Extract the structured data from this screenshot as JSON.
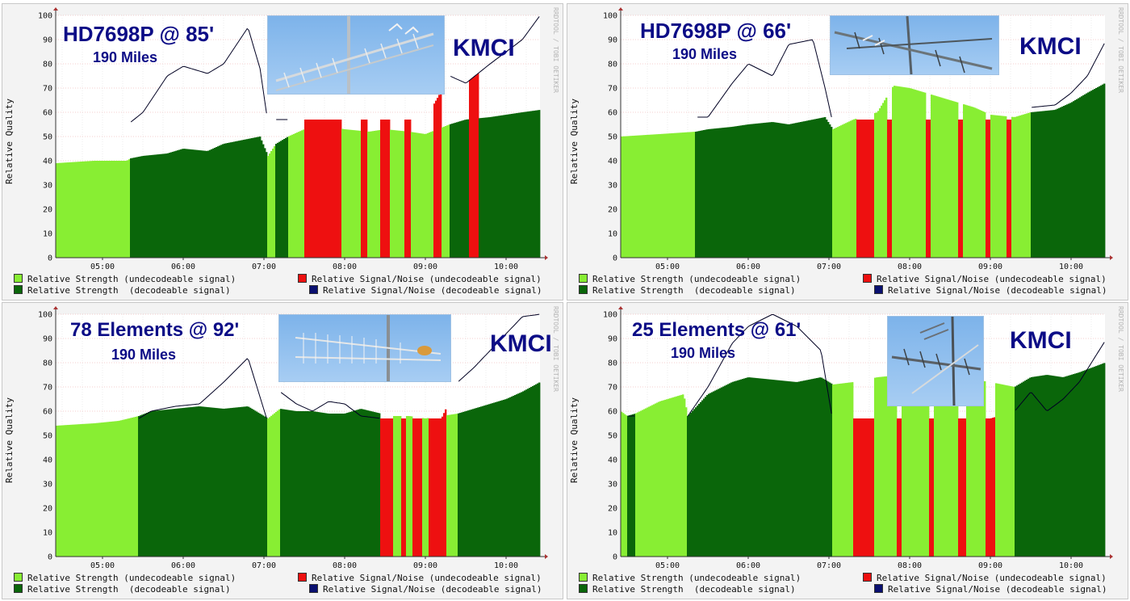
{
  "legend": {
    "strength_undecodeable": "Relative Strength (undecodeable signal)",
    "strength_decodeable": "Relative Strength  (decodeable signal)",
    "sn_undecodeable": "Relative Signal/Noise (undecodeable signal)",
    "sn_decodeable": "Relative Signal/Noise (decodeable signal)"
  },
  "colors": {
    "strength_undecodeable": "#88ee33",
    "strength_decodeable": "#0a660a",
    "sn_undecodeable": "#ee1010",
    "sn_decodeable": "#0a1070",
    "sn_line": "#000022",
    "gap_fill": "#ffee33"
  },
  "ylabel": "Relative Quality",
  "watermark": "RRDTOOL / TOBI OETIKER",
  "chart_data": [
    {
      "type": "area",
      "title": "HD7698P @ 85'",
      "subtitle": "190 Miles",
      "station": "KMCI",
      "ylabel": "Relative Quality",
      "ylim": [
        0,
        100
      ],
      "yticks": [
        0,
        10,
        20,
        30,
        40,
        50,
        60,
        70,
        80,
        90,
        100
      ],
      "xticks": [
        "05:00",
        "06:00",
        "07:00",
        "08:00",
        "09:00",
        "10:00"
      ],
      "xlim_hours": [
        4.42,
        10.42
      ],
      "x_hours": [
        4.42,
        4.9,
        5.3,
        5.35,
        5.5,
        5.8,
        6.0,
        6.3,
        6.5,
        6.8,
        6.95,
        7.05,
        7.15,
        7.3,
        7.5,
        7.8,
        8.0,
        8.3,
        8.5,
        8.8,
        9.0,
        9.3,
        9.5,
        9.8,
        10.0,
        10.2,
        10.42
      ],
      "strength": [
        39,
        40,
        40,
        41,
        42,
        43,
        45,
        44,
        47,
        49,
        50,
        42,
        47,
        50,
        53,
        54,
        53,
        52,
        53,
        52,
        51,
        55,
        57,
        58,
        59,
        60,
        61
      ],
      "signal_noise": [
        null,
        null,
        null,
        56,
        60,
        75,
        79,
        76,
        80,
        95,
        78,
        55,
        57,
        57,
        57,
        57,
        57,
        57,
        57,
        57,
        57,
        75,
        72,
        80,
        85,
        90,
        100
      ],
      "decodeable": [
        false,
        false,
        false,
        true,
        true,
        true,
        true,
        true,
        true,
        true,
        true,
        false,
        true,
        false,
        false,
        false,
        false,
        false,
        false,
        false,
        false,
        true,
        true,
        true,
        true,
        true,
        true
      ],
      "undecodeable_sn_bursts_hours": [
        [
          7.5,
          7.95
        ],
        [
          8.2,
          8.28
        ],
        [
          8.45,
          8.55
        ],
        [
          8.75,
          8.82
        ],
        [
          9.1,
          9.2
        ],
        [
          9.55,
          9.65
        ]
      ]
    },
    {
      "type": "area",
      "title": "HD7698P @ 66'",
      "subtitle": "190 Miles",
      "station": "KMCI",
      "ylabel": "Relative Quality",
      "ylim": [
        0,
        100
      ],
      "yticks": [
        0,
        10,
        20,
        30,
        40,
        50,
        60,
        70,
        80,
        90,
        100
      ],
      "xticks": [
        "05:00",
        "06:00",
        "07:00",
        "08:00",
        "09:00",
        "10:00"
      ],
      "xlim_hours": [
        4.42,
        10.42
      ],
      "x_hours": [
        4.42,
        4.9,
        5.35,
        5.5,
        5.8,
        6.0,
        6.3,
        6.5,
        6.8,
        6.95,
        7.05,
        7.3,
        7.6,
        7.8,
        8.0,
        8.3,
        8.5,
        8.8,
        9.0,
        9.3,
        9.5,
        9.8,
        10.0,
        10.2,
        10.42
      ],
      "strength": [
        50,
        51,
        52,
        53,
        54,
        55,
        56,
        55,
        57,
        58,
        53,
        57,
        60,
        71,
        70,
        67,
        65,
        62,
        59,
        58,
        60,
        61,
        64,
        68,
        72
      ],
      "signal_noise": [
        null,
        null,
        null,
        58,
        72,
        80,
        75,
        88,
        90,
        70,
        55,
        57,
        57,
        57,
        57,
        57,
        57,
        57,
        57,
        57,
        62,
        63,
        68,
        75,
        89
      ],
      "decodeable": [
        false,
        false,
        true,
        true,
        true,
        true,
        true,
        true,
        true,
        true,
        false,
        false,
        false,
        false,
        false,
        false,
        false,
        false,
        false,
        false,
        true,
        true,
        true,
        true,
        true
      ],
      "undecodeable_sn_bursts_hours": [
        [
          7.35,
          7.55
        ],
        [
          7.72,
          7.78
        ],
        [
          8.2,
          8.25
        ],
        [
          8.6,
          8.65
        ],
        [
          8.95,
          9.0
        ],
        [
          9.2,
          9.25
        ]
      ]
    },
    {
      "type": "area",
      "title": "78 Elements @ 92'",
      "subtitle": "190 Miles",
      "station": "KMCI",
      "ylabel": "Relative Quality",
      "ylim": [
        0,
        100
      ],
      "yticks": [
        0,
        10,
        20,
        30,
        40,
        50,
        60,
        70,
        80,
        90,
        100
      ],
      "xticks": [
        "05:00",
        "06:00",
        "07:00",
        "08:00",
        "09:00",
        "10:00"
      ],
      "xlim_hours": [
        4.42,
        10.42
      ],
      "x_hours": [
        4.42,
        4.9,
        5.2,
        5.45,
        5.6,
        5.9,
        6.2,
        6.5,
        6.8,
        7.05,
        7.2,
        7.4,
        7.6,
        7.8,
        8.0,
        8.2,
        8.45,
        8.6,
        8.8,
        9.0,
        9.2,
        9.4,
        9.6,
        9.8,
        10.0,
        10.2,
        10.42
      ],
      "strength": [
        54,
        55,
        56,
        58,
        60,
        61,
        62,
        61,
        62,
        57,
        61,
        60,
        60,
        59,
        59,
        61,
        59,
        58,
        58,
        57,
        58,
        59,
        61,
        63,
        65,
        68,
        72
      ],
      "signal_noise": [
        null,
        null,
        null,
        57,
        60,
        62,
        63,
        72,
        82,
        55,
        68,
        63,
        60,
        64,
        63,
        58,
        57,
        57,
        57,
        57,
        57,
        72,
        78,
        85,
        92,
        99,
        100
      ],
      "decodeable": [
        false,
        false,
        false,
        true,
        true,
        true,
        true,
        true,
        true,
        false,
        true,
        true,
        true,
        true,
        true,
        true,
        false,
        false,
        false,
        false,
        false,
        true,
        true,
        true,
        true,
        true,
        true
      ],
      "undecodeable_sn_bursts_hours": [
        [
          8.45,
          8.6
        ],
        [
          8.7,
          8.75
        ],
        [
          8.85,
          8.95
        ],
        [
          9.05,
          9.25
        ]
      ]
    },
    {
      "type": "area",
      "title": "25 Elements @ 61'",
      "subtitle": "190 Miles",
      "station": "KMCI",
      "ylabel": "Relative Quality",
      "ylim": [
        0,
        100
      ],
      "yticks": [
        0,
        10,
        20,
        30,
        40,
        50,
        60,
        70,
        80,
        90,
        100
      ],
      "xticks": [
        "05:00",
        "06:00",
        "07:00",
        "08:00",
        "09:00",
        "10:00"
      ],
      "xlim_hours": [
        4.42,
        10.42
      ],
      "x_hours": [
        4.42,
        4.5,
        4.6,
        4.9,
        5.2,
        5.25,
        5.5,
        5.8,
        6.0,
        6.3,
        6.6,
        6.9,
        7.05,
        7.3,
        7.6,
        7.9,
        8.2,
        8.5,
        8.8,
        9.0,
        9.3,
        9.5,
        9.7,
        9.9,
        10.1,
        10.42
      ],
      "strength": [
        60,
        58,
        59,
        64,
        67,
        58,
        67,
        72,
        74,
        73,
        72,
        74,
        71,
        72,
        74,
        75,
        76,
        75,
        73,
        72,
        70,
        74,
        75,
        74,
        76,
        80
      ],
      "signal_noise": [
        null,
        58,
        null,
        null,
        null,
        58,
        70,
        88,
        95,
        100,
        95,
        85,
        55,
        57,
        57,
        57,
        57,
        57,
        57,
        57,
        60,
        68,
        60,
        65,
        72,
        89
      ],
      "decodeable": [
        false,
        true,
        false,
        false,
        false,
        true,
        true,
        true,
        true,
        true,
        true,
        true,
        false,
        false,
        false,
        false,
        false,
        false,
        false,
        false,
        true,
        true,
        true,
        true,
        true,
        true
      ],
      "undecodeable_sn_bursts_hours": [
        [
          7.3,
          7.55
        ],
        [
          7.85,
          7.9
        ],
        [
          8.25,
          8.3
        ],
        [
          8.6,
          8.7
        ],
        [
          8.95,
          9.05
        ]
      ]
    }
  ]
}
